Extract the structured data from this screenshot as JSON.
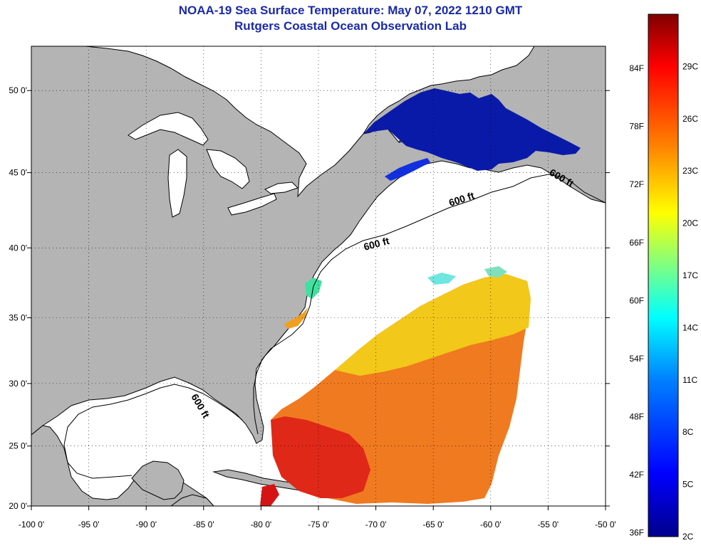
{
  "title_line1": "NOAA-19 Sea Surface Temperature:  May 07, 2022 1210 GMT",
  "title_line2": "Rutgers Coastal Ocean Observation Lab",
  "map": {
    "lon_range": [
      -100,
      -50
    ],
    "lat_range": [
      20,
      52.5
    ],
    "lon_ticks": [
      "-100 0'",
      "-95 0'",
      "-90 0'",
      "-85 0'",
      "-80 0'",
      "-75 0'",
      "-70 0'",
      "-65 0'",
      "-60 0'",
      "-55 0'",
      "-50 0'"
    ],
    "lat_ticks": [
      "20 0'",
      "25 0'",
      "30 0'",
      "35 0'",
      "40 0'",
      "45 0'",
      "50 0'"
    ],
    "grid": "dotted",
    "land_color": "#b4b4b4",
    "isobath_label": "600 ft"
  },
  "colorbar": {
    "f_labels": [
      "36F",
      "42F",
      "48F",
      "54F",
      "60F",
      "66F",
      "72F",
      "78F",
      "84F"
    ],
    "c_labels": [
      "2C",
      "5C",
      "8C",
      "11C",
      "14C",
      "17C",
      "20C",
      "23C",
      "26C",
      "29C"
    ],
    "colors": [
      "#00008c",
      "#0000ff",
      "#0080ff",
      "#00ffff",
      "#80ff80",
      "#ffff00",
      "#ff8000",
      "#ff0000",
      "#800000"
    ]
  }
}
